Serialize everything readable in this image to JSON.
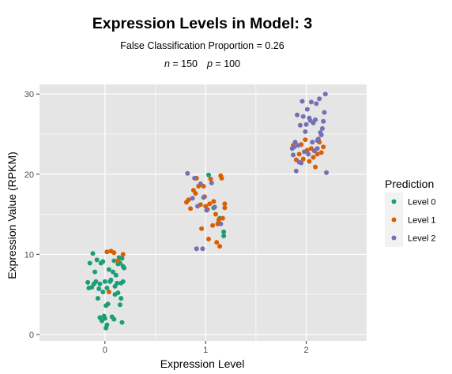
{
  "chart_data": {
    "type": "scatter",
    "title": "Expression Levels in Model: 3",
    "subtitle": "False Classification Proportion = 0.26",
    "subtitle2": {
      "n_label": "n",
      "n_value": " = 150",
      "p_label": "p",
      "p_value": " = 100"
    },
    "xlabel": "Expression Level",
    "ylabel": "Expression Value (RPKM)",
    "xlim": [
      -0.65,
      2.6
    ],
    "ylim": [
      -0.8,
      31.2
    ],
    "x_ticks": [
      0,
      1,
      2
    ],
    "x_tick_labels": [
      "0",
      "1",
      "2"
    ],
    "y_ticks": [
      0,
      10,
      20,
      30
    ],
    "y_tick_labels": [
      "0",
      "10",
      "20",
      "30"
    ],
    "grid": true,
    "legend": {
      "title": "Prediction",
      "placement": "right",
      "entries": [
        "Level 0",
        "Level 1",
        "Level 2"
      ]
    },
    "colors": {
      "Level 0": "#1b9e77",
      "Level 1": "#d95f02",
      "Level 2": "#7570b3",
      "panel": "#e5e5e5",
      "grid": "#ffffff"
    },
    "series": [
      {
        "name": "Level 0",
        "points": [
          [
            -0.17,
            6.5
          ],
          [
            -0.16,
            5.8
          ],
          [
            -0.15,
            8.9
          ],
          [
            -0.13,
            5.9
          ],
          [
            -0.12,
            10.1
          ],
          [
            -0.11,
            6.3
          ],
          [
            -0.1,
            7.8
          ],
          [
            -0.09,
            6.6
          ],
          [
            -0.08,
            9.3
          ],
          [
            -0.07,
            4.5
          ],
          [
            -0.06,
            5.7
          ],
          [
            -0.05,
            6.3
          ],
          [
            -0.05,
            2.1
          ],
          [
            -0.04,
            8.9
          ],
          [
            -0.03,
            1.7
          ],
          [
            -0.02,
            9.1
          ],
          [
            -0.02,
            5.3
          ],
          [
            -0.01,
            2.3
          ],
          [
            0.0,
            6.6
          ],
          [
            0.0,
            2.0
          ],
          [
            0.01,
            3.6
          ],
          [
            0.01,
            0.8
          ],
          [
            0.02,
            5.8
          ],
          [
            0.02,
            1.2
          ],
          [
            0.03,
            3.8
          ],
          [
            0.04,
            8.1
          ],
          [
            0.05,
            6.6
          ],
          [
            0.06,
            6.8
          ],
          [
            0.07,
            2.2
          ],
          [
            0.08,
            7.8
          ],
          [
            0.09,
            1.9
          ],
          [
            0.09,
            9.2
          ],
          [
            0.1,
            6.0
          ],
          [
            0.1,
            5.0
          ],
          [
            0.11,
            7.4
          ],
          [
            0.12,
            6.4
          ],
          [
            0.13,
            8.8
          ],
          [
            0.13,
            5.2
          ],
          [
            0.14,
            9.6
          ],
          [
            0.15,
            3.7
          ],
          [
            0.15,
            8.9
          ],
          [
            0.16,
            4.5
          ],
          [
            0.16,
            6.4
          ],
          [
            0.17,
            9.5
          ],
          [
            0.17,
            1.5
          ],
          [
            0.18,
            6.6
          ],
          [
            0.18,
            8.5
          ],
          [
            0.19,
            8.3
          ],
          [
            1.03,
            19.9
          ],
          [
            1.18,
            12.3
          ],
          [
            1.18,
            12.8
          ],
          [
            1.14,
            14.5
          ],
          [
            1.08,
            15.8
          ]
        ]
      },
      {
        "name": "Level 1",
        "points": [
          [
            0.02,
            10.3
          ],
          [
            0.06,
            10.4
          ],
          [
            0.09,
            10.2
          ],
          [
            0.13,
            9.2
          ],
          [
            0.18,
            10.0
          ],
          [
            0.04,
            5.3
          ],
          [
            0.81,
            16.5
          ],
          [
            0.83,
            16.8
          ],
          [
            0.85,
            15.7
          ],
          [
            0.88,
            18.0
          ],
          [
            0.9,
            17.6
          ],
          [
            0.91,
            19.5
          ],
          [
            0.93,
            18.5
          ],
          [
            0.95,
            16.2
          ],
          [
            0.96,
            13.2
          ],
          [
            0.98,
            18.5
          ],
          [
            0.99,
            17.2
          ],
          [
            1.0,
            16.0
          ],
          [
            1.02,
            15.6
          ],
          [
            1.03,
            11.9
          ],
          [
            1.04,
            16.3
          ],
          [
            1.05,
            19.4
          ],
          [
            1.07,
            13.6
          ],
          [
            1.08,
            16.6
          ],
          [
            1.1,
            15.0
          ],
          [
            1.11,
            11.5
          ],
          [
            1.12,
            13.8
          ],
          [
            1.13,
            14.3
          ],
          [
            1.14,
            11.0
          ],
          [
            1.15,
            19.8
          ],
          [
            1.16,
            19.5
          ],
          [
            1.17,
            14.5
          ],
          [
            1.19,
            15.8
          ],
          [
            1.19,
            16.3
          ],
          [
            1.87,
            23.6
          ],
          [
            1.9,
            21.8
          ],
          [
            1.93,
            22.5
          ],
          [
            1.95,
            23.7
          ],
          [
            1.97,
            21.9
          ],
          [
            1.99,
            24.3
          ],
          [
            2.01,
            23.0
          ],
          [
            2.03,
            21.6
          ],
          [
            2.05,
            23.2
          ],
          [
            2.07,
            22.1
          ],
          [
            2.09,
            20.9
          ],
          [
            2.11,
            22.5
          ],
          [
            2.13,
            24.0
          ],
          [
            2.15,
            22.7
          ],
          [
            2.17,
            23.4
          ]
        ]
      },
      {
        "name": "Level 2",
        "points": [
          [
            0.89,
            19.5
          ],
          [
            0.87,
            17.0
          ],
          [
            0.92,
            16.0
          ],
          [
            0.95,
            18.8
          ],
          [
            0.98,
            17.1
          ],
          [
            1.01,
            15.5
          ],
          [
            0.82,
            20.1
          ],
          [
            0.91,
            10.7
          ],
          [
            0.97,
            10.7
          ],
          [
            1.06,
            18.9
          ],
          [
            1.09,
            15.9
          ],
          [
            1.15,
            13.8
          ],
          [
            1.86,
            23.2
          ],
          [
            1.87,
            22.4
          ],
          [
            1.88,
            23.4
          ],
          [
            1.89,
            24.0
          ],
          [
            1.9,
            20.4
          ],
          [
            1.91,
            27.4
          ],
          [
            1.92,
            23.6
          ],
          [
            1.93,
            21.5
          ],
          [
            1.94,
            26.1
          ],
          [
            1.95,
            21.4
          ],
          [
            1.96,
            29.1
          ],
          [
            1.97,
            27.2
          ],
          [
            1.98,
            22.8
          ],
          [
            1.99,
            25.3
          ],
          [
            2.0,
            26.2
          ],
          [
            2.01,
            28.1
          ],
          [
            2.02,
            22.5
          ],
          [
            2.03,
            27.0
          ],
          [
            2.04,
            26.7
          ],
          [
            2.05,
            29.0
          ],
          [
            2.06,
            24.0
          ],
          [
            2.07,
            26.4
          ],
          [
            2.08,
            22.9
          ],
          [
            2.09,
            26.8
          ],
          [
            2.1,
            28.8
          ],
          [
            2.11,
            23.2
          ],
          [
            2.12,
            24.4
          ],
          [
            2.13,
            29.4
          ],
          [
            2.14,
            25.2
          ],
          [
            2.15,
            24.9
          ],
          [
            2.16,
            25.7
          ],
          [
            2.17,
            26.6
          ],
          [
            2.18,
            27.7
          ],
          [
            2.19,
            30.0
          ],
          [
            2.2,
            20.2
          ],
          [
            2.11,
            24.2
          ]
        ]
      }
    ]
  }
}
